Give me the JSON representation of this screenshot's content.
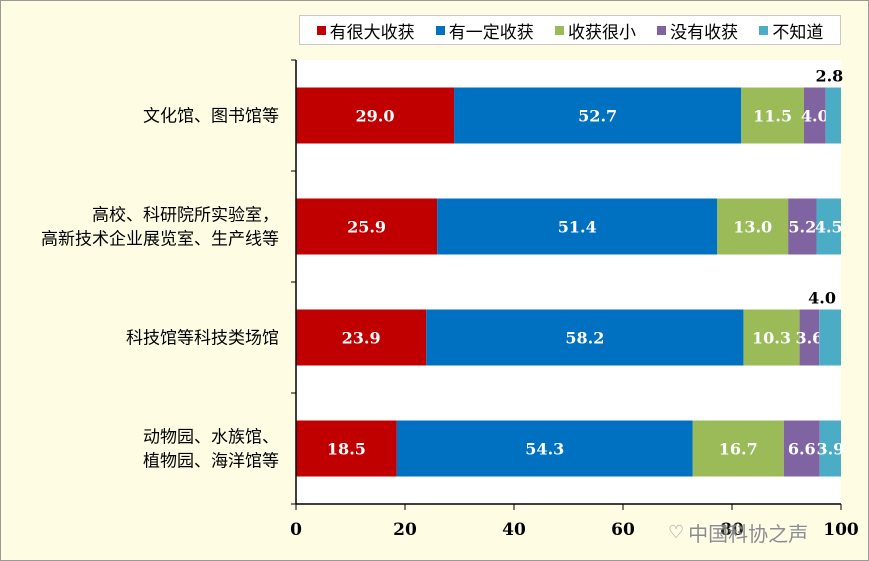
{
  "chart_data": {
    "type": "bar",
    "orientation": "horizontal",
    "stacked": true,
    "categories": [
      [
        "文化馆、图书馆等"
      ],
      [
        "高校、科研院所实验室，",
        "高新技术企业展览室、生产线等"
      ],
      [
        "科技馆等科技类场馆"
      ],
      [
        "动物园、水族馆、",
        "植物园、海洋馆等"
      ]
    ],
    "series": [
      {
        "name": "有很大收获",
        "color": "#c00000",
        "values": [
          29.0,
          25.9,
          23.9,
          18.5
        ]
      },
      {
        "name": "有一定收获",
        "color": "#0070c0",
        "values": [
          52.7,
          51.4,
          58.2,
          54.3
        ]
      },
      {
        "name": "收获很小",
        "color": "#9bbb59",
        "values": [
          11.5,
          13.0,
          10.3,
          16.7
        ]
      },
      {
        "name": "没有收获",
        "color": "#8064a2",
        "values": [
          4.0,
          5.2,
          3.6,
          6.6
        ]
      },
      {
        "name": "不知道",
        "color": "#4bacc6",
        "values": [
          2.8,
          4.5,
          4.0,
          3.9
        ]
      }
    ],
    "data_labels": [
      [
        "29.0",
        "52.7",
        "11.5",
        "4.0",
        "2.8"
      ],
      [
        "25.9",
        "51.4",
        "13.0",
        "5.2",
        "4.5"
      ],
      [
        "23.9",
        "58.2",
        "10.3",
        "3.6",
        "4.0"
      ],
      [
        "18.5",
        "54.3",
        "16.7",
        "6.6",
        "3.9"
      ]
    ],
    "xlim": [
      0,
      100
    ],
    "x_ticks": [
      "0",
      "20",
      "40",
      "60",
      "80",
      "100"
    ],
    "legend_position": "top",
    "grid": false
  },
  "watermark": {
    "text": "中国科协之声",
    "icon": "weibo-icon"
  }
}
